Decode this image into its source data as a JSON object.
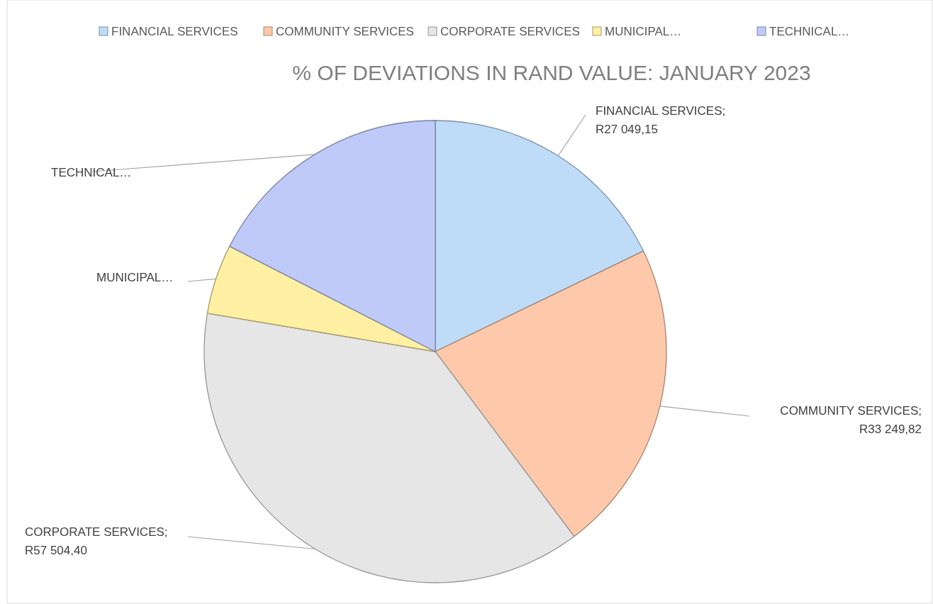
{
  "chart_data": {
    "type": "pie",
    "title": "% OF DEVIATIONS IN RAND VALUE: JANUARY 2023",
    "categories": [
      "FINANCIAL SERVICES",
      "COMMUNITY SERVICES",
      "CORPORATE SERVICES",
      "MUNICIPAL…",
      "TECHNICAL…"
    ],
    "values": [
      27049.15,
      33249.82,
      57504.4,
      7400,
      26500
    ],
    "colors": [
      "#bedcf7",
      "#fdc9aa",
      "#e6e6e6",
      "#fff0a3",
      "#bfcaf9"
    ],
    "value_labels": [
      "FINANCIAL SERVICES; R27 049,15",
      "COMMUNITY SERVICES; R33 249,82",
      "CORPORATE SERVICES; R57 504,40",
      null,
      null
    ],
    "legend": "top"
  }
}
